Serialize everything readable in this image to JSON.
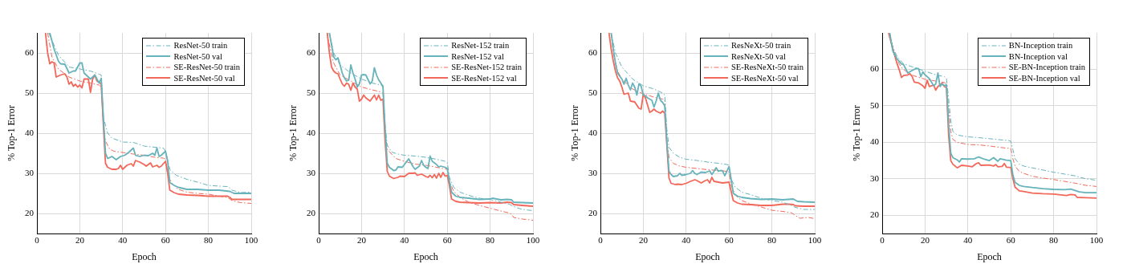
{
  "chart_data": [
    {
      "type": "line",
      "xlabel": "Epoch",
      "ylabel": "% Top-1 Error",
      "xlim": [
        0,
        100
      ],
      "xticks": [
        0,
        20,
        40,
        60,
        80,
        100
      ],
      "ylim": [
        15,
        65
      ],
      "yticks": [
        20,
        30,
        40,
        50,
        60
      ],
      "grid": true,
      "legend": "top right",
      "marker": "none",
      "series": [
        {
          "name": "ResNet-50 train",
          "color": "#66b3bb",
          "line_style": "dashed",
          "x": [
            5.5,
            10,
            15,
            20,
            25,
            29,
            30,
            31,
            33,
            35,
            40,
            45,
            50,
            55,
            59,
            60,
            62,
            65,
            70,
            75,
            80,
            85,
            89,
            91,
            95,
            100
          ],
          "values": [
            65,
            59.5,
            56.5,
            56,
            55.5,
            54.7,
            54.5,
            44,
            40,
            38.8,
            37.8,
            37.7,
            36.8,
            36.5,
            36.3,
            35.5,
            31,
            29.5,
            28.5,
            27.8,
            27,
            26.8,
            26.7,
            25.8,
            25.2,
            25.3
          ]
        },
        {
          "name": "ResNet-50 val",
          "color": "#66b3bb",
          "line_style": "solid",
          "x": [
            6,
            8,
            10,
            11,
            13,
            15,
            17,
            18,
            20,
            21,
            22,
            24,
            25,
            27,
            28,
            29,
            30,
            31,
            32,
            33,
            35,
            37,
            39,
            41,
            43,
            45,
            46,
            48,
            50,
            52,
            54,
            55,
            56,
            57,
            58,
            60,
            61,
            62,
            64,
            66,
            70,
            75,
            80,
            85,
            90,
            92,
            95,
            100
          ],
          "values": [
            65,
            61,
            58,
            57.3,
            57.2,
            55,
            55.5,
            55.5,
            57.5,
            57.5,
            55,
            54,
            53.5,
            54.5,
            53.5,
            52.5,
            53.7,
            44,
            35,
            33.7,
            34.2,
            33.4,
            34.2,
            34.5,
            35.3,
            36.3,
            34.5,
            34.2,
            34.5,
            34.4,
            35,
            34.5,
            36.3,
            34.2,
            34.5,
            35.5,
            33,
            27.7,
            27,
            26.5,
            26,
            26,
            25.8,
            25.8,
            25.5,
            25,
            25,
            25
          ]
        },
        {
          "name": "SE-ResNet-50 train",
          "color": "#f2685a",
          "line_style": "dashed",
          "x": [
            5,
            7,
            10,
            15,
            20,
            25,
            29,
            30,
            31,
            32,
            34,
            36,
            40,
            45,
            50,
            55,
            59,
            60,
            61,
            63,
            66,
            70,
            75,
            80,
            85,
            89,
            91,
            95,
            100
          ],
          "values": [
            65,
            59,
            56,
            54,
            53,
            52.5,
            52,
            51.5,
            42,
            38,
            36,
            35.5,
            35.2,
            34.8,
            34.5,
            34,
            33.8,
            33.5,
            30,
            27.5,
            26,
            25.3,
            25,
            24.8,
            24.3,
            24,
            23.2,
            22.7,
            22.5
          ]
        },
        {
          "name": "SE-ResNet-50 val",
          "color": "#f2685a",
          "line_style": "solid",
          "x": [
            4,
            5,
            6,
            7,
            8,
            9,
            11,
            13,
            14,
            15,
            16,
            17,
            18,
            19,
            20,
            21,
            22,
            23,
            24,
            25,
            26,
            27,
            28,
            29,
            30,
            31,
            32,
            33,
            35,
            37,
            38,
            39,
            40,
            42,
            44,
            45,
            46,
            48,
            50,
            51,
            53,
            54,
            56,
            57,
            58,
            60,
            61,
            62,
            64,
            66,
            70,
            75,
            80,
            85,
            89,
            90,
            91,
            95,
            100
          ],
          "values": [
            65,
            60,
            57.3,
            57.8,
            57.5,
            54,
            54.5,
            54.8,
            54,
            52.2,
            52.8,
            51.7,
            52.2,
            51.5,
            52,
            51.3,
            53.5,
            53.5,
            53.5,
            50.2,
            53.5,
            54.5,
            53,
            52.7,
            52.3,
            42,
            32.5,
            31.5,
            31,
            31,
            31.2,
            32,
            31,
            32,
            32.4,
            31.8,
            33.2,
            32.8,
            32.2,
            31.8,
            32.6,
            31.6,
            32,
            31.5,
            31.8,
            33,
            30,
            25.8,
            25.2,
            24.8,
            24.6,
            24.5,
            24.3,
            24.3,
            24.3,
            24,
            23.5,
            23.5,
            23.5
          ]
        }
      ]
    },
    {
      "type": "line",
      "xlabel": "Epoch",
      "ylabel": "% Top-1 Error",
      "xlim": [
        0,
        100
      ],
      "xticks": [
        0,
        20,
        40,
        60,
        80,
        100
      ],
      "ylim": [
        15,
        65
      ],
      "yticks": [
        20,
        30,
        40,
        50,
        60
      ],
      "grid": true,
      "legend": "top right",
      "marker": "none",
      "series": [
        {
          "name": "ResNet-152 train",
          "color": "#66b3bb",
          "line_style": "dashed",
          "x": [
            5,
            7,
            10,
            15,
            20,
            25,
            29,
            30,
            31,
            32,
            34,
            37,
            40,
            45,
            50,
            55,
            59,
            60,
            61,
            63,
            66,
            70,
            75,
            80,
            85,
            89,
            91,
            95,
            100
          ],
          "values": [
            65,
            60,
            57,
            55,
            53.5,
            52.5,
            52,
            52,
            42,
            37,
            35.3,
            34.8,
            34.5,
            34.3,
            34,
            33.5,
            33,
            32.7,
            29,
            26.5,
            25.3,
            24.5,
            23.8,
            23.5,
            22.8,
            22.3,
            21.7,
            21,
            20.7
          ]
        },
        {
          "name": "ResNet-152 val",
          "color": "#66b3bb",
          "line_style": "solid",
          "x": [
            5,
            6,
            7,
            8,
            9,
            10,
            11,
            12,
            13,
            14,
            15,
            16,
            17,
            18,
            19,
            20,
            21,
            22,
            24,
            25,
            26,
            27,
            28,
            29,
            30,
            31,
            32,
            33,
            35,
            36,
            37,
            39,
            40,
            42,
            44,
            45,
            47,
            48,
            49,
            50,
            51,
            52,
            53,
            55,
            56,
            57,
            59,
            60,
            61,
            62,
            64,
            66,
            70,
            75,
            80,
            81,
            85,
            88,
            90,
            91,
            95,
            100
          ],
          "values": [
            65,
            62,
            59,
            58.3,
            58.8,
            57,
            55,
            53.8,
            53,
            53.2,
            57,
            55,
            53.5,
            51.5,
            52.3,
            54.5,
            54.6,
            54.5,
            52.3,
            53,
            56.3,
            54.5,
            53.3,
            52.5,
            51.5,
            41,
            32.5,
            31.5,
            30.7,
            30.8,
            31.6,
            31.5,
            32.2,
            33.6,
            31.7,
            31,
            31.8,
            33.2,
            32,
            31.5,
            31.2,
            34.3,
            33,
            32.2,
            31.6,
            31.8,
            31.5,
            31.2,
            28,
            25.3,
            24.3,
            24,
            23.8,
            23.5,
            23.6,
            23.8,
            23.4,
            23.5,
            23.4,
            22.8,
            22.7,
            22.6
          ]
        },
        {
          "name": "SE-ResNet-152 train",
          "color": "#f2685a",
          "line_style": "dashed",
          "x": [
            4,
            5,
            7,
            10,
            15,
            20,
            25,
            29,
            30,
            31,
            32,
            34,
            36,
            40,
            45,
            50,
            55,
            60,
            61,
            63,
            66,
            70,
            75,
            80,
            85,
            89,
            90,
            91,
            95,
            100
          ],
          "values": [
            65,
            62,
            57.5,
            54.5,
            53,
            51.5,
            50.8,
            50.3,
            50,
            40,
            36,
            34.8,
            33.7,
            33,
            32.3,
            32,
            31.5,
            31,
            28,
            25.5,
            24,
            22.8,
            22,
            21.3,
            20.6,
            20.1,
            19.8,
            19,
            18.6,
            18.3
          ]
        },
        {
          "name": "SE-ResNet-152 val",
          "color": "#f2685a",
          "line_style": "solid",
          "x": [
            4,
            5,
            6,
            7,
            8,
            9,
            10,
            11,
            12,
            13,
            14,
            15,
            16,
            17,
            18,
            19,
            20,
            21,
            22,
            24,
            26,
            27,
            28,
            29,
            30,
            31,
            32,
            33,
            35,
            37,
            38,
            40,
            42,
            44,
            45,
            46,
            48,
            50,
            51,
            52,
            53,
            54,
            55,
            56,
            57,
            58,
            59,
            60,
            61,
            62,
            64,
            66,
            70,
            75,
            80,
            85,
            88,
            90,
            91,
            95,
            100
          ],
          "values": [
            65,
            60,
            56.5,
            55.5,
            55,
            54.8,
            53.5,
            52.3,
            51.7,
            52.5,
            52.2,
            50.7,
            52.5,
            51.5,
            51,
            48,
            48.5,
            49.5,
            48.8,
            48,
            49.5,
            48.3,
            49.5,
            48.2,
            48.5,
            38,
            30.5,
            29.3,
            28.7,
            29,
            29.3,
            29.2,
            30,
            30,
            30.1,
            29.5,
            29.8,
            29.2,
            29,
            29.5,
            28.9,
            29.7,
            28.8,
            30,
            29,
            30.2,
            29.3,
            29.5,
            27,
            23.6,
            23,
            22.8,
            22.7,
            22.6,
            22.7,
            22.6,
            22.8,
            22.7,
            22.2,
            22,
            21.8
          ]
        }
      ]
    },
    {
      "type": "line",
      "xlabel": "Epoch",
      "ylabel": "% Top-1 Error",
      "xlim": [
        0,
        100
      ],
      "xticks": [
        0,
        20,
        40,
        60,
        80,
        100
      ],
      "ylim": [
        15,
        65
      ],
      "yticks": [
        20,
        30,
        40,
        50,
        60
      ],
      "grid": true,
      "legend": "top right",
      "marker": "none",
      "series": [
        {
          "name": "ResNeXt-50 train",
          "color": "#66b3bb",
          "line_style": "dashed",
          "x": [
            5,
            7,
            10,
            15,
            20,
            25,
            29,
            30,
            31,
            32,
            34,
            37,
            40,
            45,
            50,
            55,
            59,
            60,
            61,
            63,
            66,
            70,
            75,
            80,
            85,
            89,
            91,
            95,
            100
          ],
          "values": [
            65,
            60,
            56.5,
            53.5,
            51.8,
            51,
            50,
            49.5,
            41,
            36.5,
            35,
            34,
            33.5,
            33.2,
            32.8,
            32.5,
            32.2,
            32,
            28.5,
            26.5,
            25.3,
            24.7,
            23.8,
            23.2,
            22.8,
            22,
            21.5,
            21,
            21
          ]
        },
        {
          "name": "ResNeXt-50 val",
          "color": "#66b3bb",
          "line_style": "solid",
          "x": [
            5,
            6,
            7,
            8,
            9,
            10,
            11,
            12,
            13,
            14,
            15,
            16,
            17,
            18,
            19,
            20,
            21,
            22,
            24,
            25,
            26,
            27,
            28,
            29,
            30,
            31,
            32,
            33,
            34,
            36,
            37,
            38,
            40,
            42,
            43,
            44,
            45,
            47,
            49,
            51,
            52,
            53,
            54,
            55,
            56,
            57,
            58,
            59,
            60,
            61,
            62,
            64,
            66,
            70,
            75,
            80,
            85,
            90,
            92,
            95,
            100
          ],
          "values": [
            65,
            61,
            57.5,
            55,
            54.2,
            53.5,
            52.2,
            53.7,
            52,
            50.8,
            52.5,
            51.5,
            49.5,
            52.3,
            51.7,
            49.5,
            49.3,
            48.8,
            48.2,
            46.5,
            48,
            50,
            48.2,
            47.7,
            46.8,
            38,
            30.5,
            29.7,
            29.2,
            29.4,
            30,
            29.5,
            29.7,
            30,
            30.7,
            30,
            29.7,
            30.3,
            30.2,
            30.6,
            29.7,
            30.5,
            31.4,
            30.5,
            30.7,
            30.6,
            29.4,
            30.5,
            31.7,
            28.5,
            25,
            24.3,
            24,
            23.7,
            23.5,
            23.6,
            23.4,
            23.6,
            23,
            22.9,
            22.8
          ]
        },
        {
          "name": "SE-ResNeXt-50 train",
          "color": "#f2685a",
          "line_style": "dashed",
          "x": [
            5,
            6,
            8,
            10,
            15,
            20,
            25,
            29,
            30,
            31,
            32,
            34,
            37,
            40,
            45,
            50,
            55,
            59,
            60,
            61,
            63,
            66,
            70,
            75,
            80,
            85,
            89,
            91,
            93,
            97,
            100
          ],
          "values": [
            65,
            60,
            55.5,
            53.5,
            51,
            49.8,
            49,
            48.5,
            48.3,
            38,
            34,
            32.5,
            31.8,
            31.5,
            31.2,
            30.9,
            30.7,
            30.5,
            30.3,
            27,
            24.5,
            23.2,
            22.4,
            21.6,
            20.8,
            20.5,
            20.2,
            19.5,
            18.8,
            19,
            18.7
          ]
        },
        {
          "name": "SE-ResNeXt-50 val",
          "color": "#f2685a",
          "line_style": "solid",
          "x": [
            4,
            5,
            6,
            7,
            8,
            9,
            10,
            11,
            13,
            14,
            16,
            17,
            18,
            19,
            20,
            21,
            23,
            24,
            25,
            26,
            28,
            29,
            30,
            31,
            32,
            33,
            35,
            36,
            38,
            40,
            42,
            44,
            45,
            47,
            49,
            50,
            51,
            52,
            53,
            55,
            57,
            60,
            61,
            62,
            64,
            66,
            70,
            75,
            80,
            85,
            88,
            90,
            91,
            95,
            100
          ],
          "values": [
            65,
            61,
            58,
            55.5,
            53.8,
            53,
            51.5,
            49.7,
            50,
            48,
            47.8,
            47,
            46.2,
            46,
            49.8,
            48.8,
            45.2,
            45.5,
            46,
            45.5,
            45,
            45.5,
            45,
            37,
            28.8,
            27.5,
            27.2,
            27.3,
            27.2,
            27.5,
            28,
            28.4,
            28.2,
            27.6,
            28.2,
            28.4,
            27.6,
            29,
            28,
            27.8,
            27.6,
            27.8,
            25.5,
            23.2,
            22.6,
            22.3,
            22.2,
            22,
            22,
            22.3,
            22.3,
            22.2,
            21.9,
            21.8,
            21.8
          ]
        }
      ]
    },
    {
      "type": "line",
      "xlabel": "Epoch",
      "ylabel": "% Top-1 Error",
      "xlim": [
        0,
        100
      ],
      "xticks": [
        0,
        20,
        40,
        60,
        80,
        100
      ],
      "ylim": [
        15,
        70
      ],
      "yticks": [
        20,
        30,
        40,
        50,
        60
      ],
      "grid": true,
      "legend": "top right",
      "marker": "none",
      "series": [
        {
          "name": "BN-Inception train",
          "color": "#66b3bb",
          "line_style": "dashed",
          "x": [
            3.5,
            5,
            7,
            10,
            15,
            20,
            25,
            29,
            30,
            31,
            32,
            33,
            35,
            40,
            45,
            50,
            55,
            59,
            60,
            61,
            62,
            64,
            66,
            70,
            75,
            80,
            85,
            90,
            95,
            100
          ],
          "values": [
            70,
            66,
            63.5,
            61.5,
            60.5,
            59.5,
            58.5,
            58,
            57.5,
            52,
            46,
            43,
            42,
            41.5,
            41.3,
            41,
            40.7,
            40.5,
            40.3,
            38,
            35.5,
            34,
            33.5,
            33,
            32.4,
            31.8,
            31.3,
            30.8,
            30,
            29.6
          ]
        },
        {
          "name": "BN-Inception val",
          "color": "#66b3bb",
          "line_style": "solid",
          "x": [
            3.5,
            5,
            7,
            9,
            10,
            12,
            14,
            16,
            17,
            18,
            19,
            20,
            22,
            24,
            25,
            26,
            27,
            28,
            29,
            30,
            31,
            32,
            33,
            35,
            36,
            37,
            40,
            43,
            45,
            48,
            50,
            52,
            54,
            55,
            58,
            60,
            61,
            62,
            64,
            66,
            70,
            75,
            80,
            85,
            88,
            90,
            92,
            95,
            100
          ],
          "values": [
            70,
            65,
            62.8,
            61.5,
            61.3,
            59,
            59.7,
            60.3,
            60.2,
            58,
            59.3,
            58.5,
            57.5,
            55.5,
            56,
            59,
            55.3,
            56,
            55.5,
            55.8,
            45,
            37,
            35.8,
            35.2,
            34.6,
            35.5,
            35.4,
            35.5,
            36,
            35.3,
            35,
            35.8,
            34.8,
            35.5,
            35.1,
            35,
            31,
            29,
            28.2,
            27.9,
            27.6,
            27.3,
            27.1,
            27,
            27.2,
            26.8,
            26.4,
            26.2,
            26.2
          ]
        },
        {
          "name": "SE-BN-Inception train",
          "color": "#f2685a",
          "line_style": "dashed",
          "x": [
            3.5,
            5,
            7,
            9,
            12,
            15,
            20,
            25,
            29,
            30,
            31,
            32,
            33,
            35,
            40,
            45,
            50,
            55,
            60,
            61,
            62,
            64,
            66,
            70,
            75,
            80,
            85,
            90,
            95,
            100
          ],
          "values": [
            70,
            66,
            62.5,
            60.5,
            59,
            58.2,
            57.3,
            56.8,
            56.4,
            56,
            49,
            43,
            40.8,
            40,
            39.4,
            39.3,
            39,
            38.6,
            38.3,
            35.5,
            33.5,
            32,
            31.5,
            30.7,
            30.2,
            29.8,
            29.3,
            28.8,
            28.2,
            27.9
          ]
        },
        {
          "name": "SE-BN-Inception val",
          "color": "#f2685a",
          "line_style": "solid",
          "x": [
            3,
            5,
            7,
            8,
            9,
            10,
            12,
            13,
            14,
            15,
            17,
            19,
            20,
            21,
            22,
            24,
            25,
            26,
            27,
            28,
            29,
            30,
            31,
            32,
            33,
            35,
            37,
            40,
            42,
            44,
            45,
            46,
            50,
            52,
            53,
            54,
            56,
            57,
            58,
            60,
            61,
            62,
            64,
            66,
            70,
            75,
            80,
            85,
            86,
            88,
            90,
            91,
            95,
            100
          ],
          "values": [
            70,
            65.5,
            61.5,
            59.8,
            57.8,
            58.3,
            58.5,
            58.8,
            58,
            56.5,
            56.3,
            55.5,
            54.8,
            57,
            55.3,
            55.7,
            54.3,
            55.3,
            55.8,
            56.2,
            55.3,
            55,
            42,
            35,
            34,
            33,
            33.7,
            33.5,
            33.3,
            34.2,
            34.4,
            33.7,
            33.8,
            33.5,
            33.9,
            33.3,
            33.4,
            34.2,
            33.2,
            33.1,
            30,
            27.7,
            26.7,
            26.5,
            26.1,
            25.9,
            25.8,
            25.5,
            25.4,
            25.7,
            25.6,
            24.9,
            24.8,
            24.7
          ]
        }
      ]
    }
  ]
}
